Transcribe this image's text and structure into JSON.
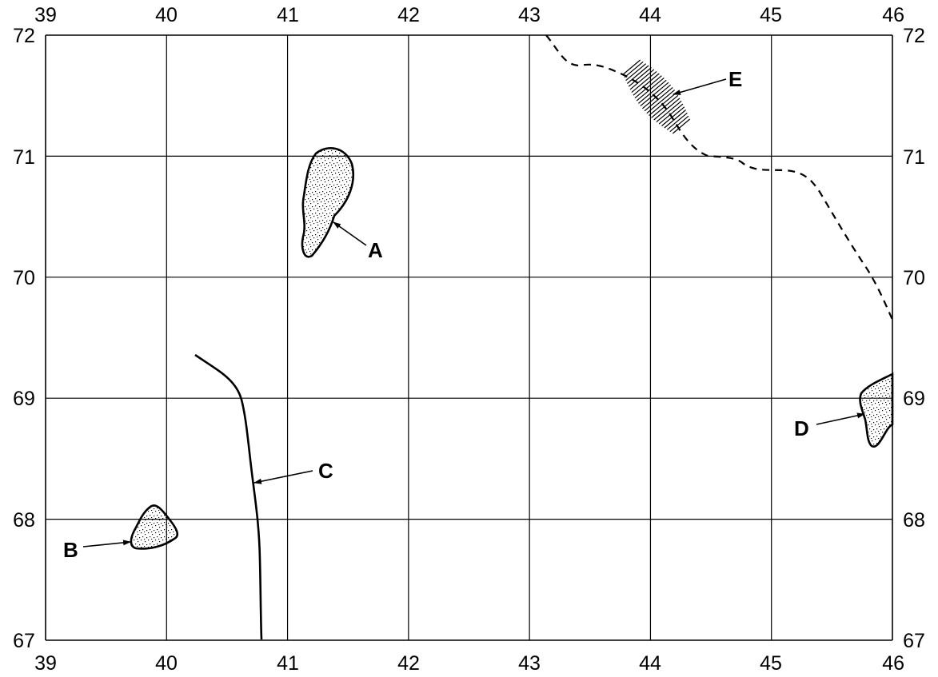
{
  "map": {
    "x_ticks": [
      "39",
      "40",
      "41",
      "42",
      "43",
      "44",
      "45",
      "46"
    ],
    "y_ticks": [
      "72",
      "71",
      "70",
      "69",
      "68",
      "67"
    ],
    "features": {
      "A": {
        "label": "A"
      },
      "B": {
        "label": "B"
      },
      "C": {
        "label": "C"
      },
      "D": {
        "label": "D"
      },
      "E": {
        "label": "E"
      }
    },
    "colors": {
      "ink": "#000000",
      "background": "#ffffff"
    }
  }
}
